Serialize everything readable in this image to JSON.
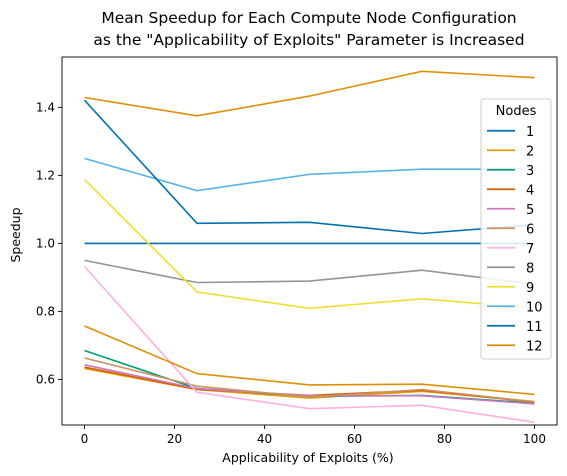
{
  "chart_data": {
    "type": "line",
    "title_lines": [
      "Mean Speedup for Each Compute Node Configuration",
      "as the \"Applicability of Exploits\" Parameter is Increased"
    ],
    "xlabel": "Applicability of Exploits (%)",
    "ylabel": "Speedup",
    "x": [
      0,
      25,
      50,
      75,
      100
    ],
    "xlim": [
      -5,
      105
    ],
    "ylim": [
      0.466,
      1.548
    ],
    "xticks": [
      0,
      20,
      40,
      60,
      80,
      100
    ],
    "yticks": [
      0.6,
      0.8,
      1.0,
      1.2,
      1.4
    ],
    "xtick_labels": [
      "0",
      "20",
      "40",
      "60",
      "80",
      "100"
    ],
    "ytick_labels": [
      "0.6",
      "0.8",
      "1.0",
      "1.2",
      "1.4"
    ],
    "grid": false,
    "legend": {
      "title": "Nodes",
      "placement": "right"
    },
    "series": [
      {
        "name": "1",
        "color": "#0072b2",
        "values": [
          1.0,
          1.0,
          1.0,
          1.0,
          1.0
        ]
      },
      {
        "name": "2",
        "color": "#e69f00",
        "values": [
          0.632,
          0.57,
          0.545,
          0.565,
          0.535
        ]
      },
      {
        "name": "3",
        "color": "#009e73",
        "values": [
          0.685,
          0.573,
          0.55,
          0.553,
          0.53
        ]
      },
      {
        "name": "4",
        "color": "#d55e00",
        "values": [
          0.636,
          0.571,
          0.553,
          0.568,
          0.533
        ]
      },
      {
        "name": "5",
        "color": "#cc78bc",
        "values": [
          0.643,
          0.573,
          0.552,
          0.552,
          0.528
        ]
      },
      {
        "name": "6",
        "color": "#ca9161",
        "values": [
          0.663,
          0.58,
          0.548,
          0.57,
          0.534
        ]
      },
      {
        "name": "7",
        "color": "#fbafe4",
        "values": [
          0.932,
          0.562,
          0.514,
          0.524,
          0.474
        ]
      },
      {
        "name": "8",
        "color": "#949494",
        "values": [
          0.95,
          0.885,
          0.889,
          0.921,
          0.88
        ]
      },
      {
        "name": "9",
        "color": "#ece133",
        "values": [
          1.188,
          0.857,
          0.809,
          0.837,
          0.81
        ]
      },
      {
        "name": "10",
        "color": "#56b4e9",
        "values": [
          1.25,
          1.155,
          1.203,
          1.218,
          1.218
        ]
      },
      {
        "name": "11",
        "color": "#0072b2",
        "values": [
          1.421,
          1.059,
          1.062,
          1.029,
          1.055
        ]
      },
      {
        "name": "12",
        "color": "#de8f05",
        "values": [
          1.429,
          1.375,
          1.433,
          1.506,
          1.487
        ]
      },
      {
        "name": "",
        "color": "#de8f05",
        "values": [
          0.757,
          0.617,
          0.584,
          0.586,
          0.556
        ]
      }
    ]
  }
}
